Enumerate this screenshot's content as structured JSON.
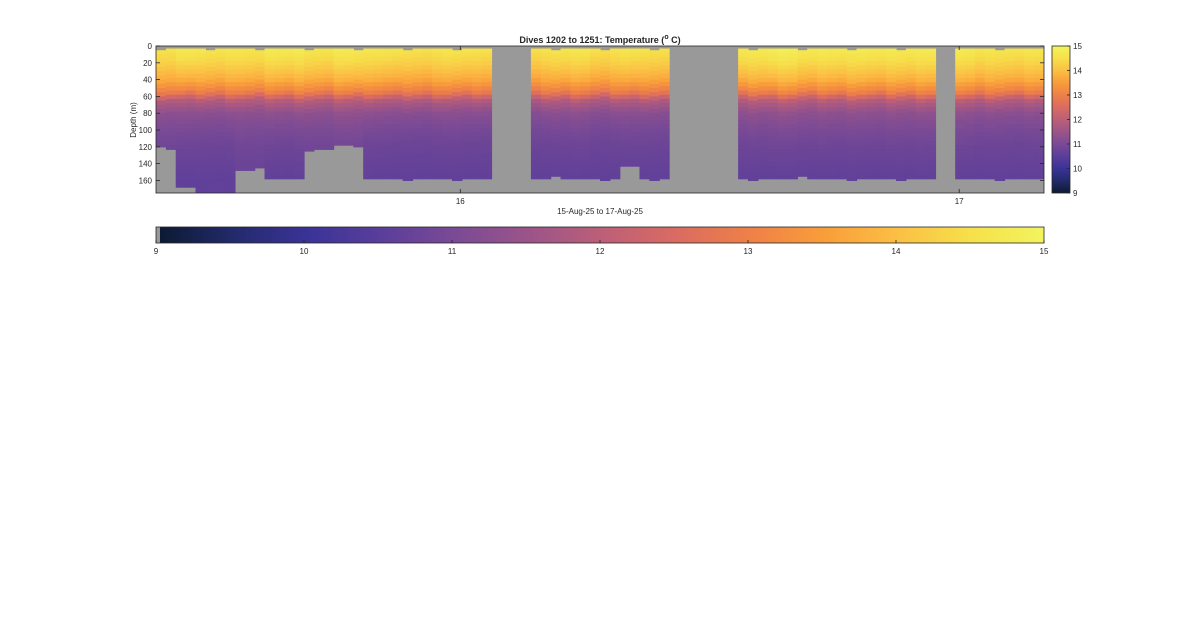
{
  "chart_data": [
    {
      "type": "heatmap",
      "title": "Dives 1202 to 1251: Temperature (",
      "title_superscript": "o",
      "title_suffix": " C)",
      "xlabel": "15-Aug-25 to 17-Aug-25",
      "ylabel": "Depth (m)",
      "x_unit": "day of month (Aug 2025)",
      "xlim": [
        15.39,
        17.17
      ],
      "ylim": [
        0,
        175
      ],
      "y_reversed": true,
      "x_ticks": [
        16,
        17
      ],
      "x_tick_labels": [
        "16",
        "17"
      ],
      "y_ticks": [
        0,
        20,
        40,
        60,
        80,
        100,
        120,
        140,
        160
      ],
      "y_tick_labels": [
        "0",
        "20",
        "40",
        "60",
        "80",
        "100",
        "120",
        "140",
        "160"
      ],
      "colormap": [
        "#0d1a33",
        "#232a6b",
        "#3a3397",
        "#5a3e9a",
        "#7a4a95",
        "#9b5489",
        "#bc5f78",
        "#d96b62",
        "#ee8048",
        "#f89d3a",
        "#fbbf44",
        "#f6e04b",
        "#f2f45e"
      ],
      "clim": [
        9,
        15
      ],
      "no_data_color": "#999999",
      "data_gaps_x": [
        [
          16.065,
          16.135
        ],
        [
          16.42,
          16.56
        ],
        [
          16.95,
          16.99
        ]
      ],
      "profiles": [
        {
          "x": 15.39,
          "max_depth": 120,
          "surface_temp": 14.6,
          "bottom_temp": 10.7
        },
        {
          "x": 15.45,
          "max_depth": 165,
          "surface_temp": 14.8,
          "bottom_temp": 10.6
        },
        {
          "x": 15.5,
          "max_depth": 175,
          "surface_temp": 14.7,
          "bottom_temp": 10.6
        },
        {
          "x": 15.58,
          "max_depth": 145,
          "surface_temp": 14.7,
          "bottom_temp": 10.7
        },
        {
          "x": 15.65,
          "max_depth": 158,
          "surface_temp": 14.8,
          "bottom_temp": 10.6
        },
        {
          "x": 15.73,
          "max_depth": 122,
          "surface_temp": 14.7,
          "bottom_temp": 10.7
        },
        {
          "x": 15.78,
          "max_depth": 118,
          "surface_temp": 14.8,
          "bottom_temp": 10.7
        },
        {
          "x": 15.85,
          "max_depth": 157,
          "surface_temp": 14.7,
          "bottom_temp": 10.6
        },
        {
          "x": 15.93,
          "max_depth": 156,
          "surface_temp": 14.6,
          "bottom_temp": 10.6
        },
        {
          "x": 16.0,
          "max_depth": 158,
          "surface_temp": 14.7,
          "bottom_temp": 10.6
        },
        {
          "x": 16.05,
          "max_depth": 155,
          "surface_temp": 14.6,
          "bottom_temp": 10.6
        },
        {
          "x": 16.15,
          "max_depth": 158,
          "surface_temp": 14.6,
          "bottom_temp": 10.6
        },
        {
          "x": 16.22,
          "max_depth": 155,
          "surface_temp": 14.7,
          "bottom_temp": 10.6
        },
        {
          "x": 16.3,
          "max_depth": 157,
          "surface_temp": 14.6,
          "bottom_temp": 10.6
        },
        {
          "x": 16.33,
          "max_depth": 140,
          "surface_temp": 14.7,
          "bottom_temp": 10.6
        },
        {
          "x": 16.38,
          "max_depth": 157,
          "surface_temp": 14.6,
          "bottom_temp": 10.6
        },
        {
          "x": 16.58,
          "max_depth": 156,
          "surface_temp": 14.8,
          "bottom_temp": 10.6
        },
        {
          "x": 16.65,
          "max_depth": 158,
          "surface_temp": 14.9,
          "bottom_temp": 10.6
        },
        {
          "x": 16.72,
          "max_depth": 155,
          "surface_temp": 14.8,
          "bottom_temp": 10.6
        },
        {
          "x": 16.8,
          "max_depth": 157,
          "surface_temp": 14.8,
          "bottom_temp": 10.6
        },
        {
          "x": 16.88,
          "max_depth": 158,
          "surface_temp": 14.8,
          "bottom_temp": 10.6
        },
        {
          "x": 17.0,
          "max_depth": 155,
          "surface_temp": 14.8,
          "bottom_temp": 10.6
        },
        {
          "x": 17.08,
          "max_depth": 156,
          "surface_temp": 14.7,
          "bottom_temp": 10.6
        },
        {
          "x": 17.15,
          "max_depth": 155,
          "surface_temp": 14.7,
          "bottom_temp": 10.6
        }
      ],
      "layer_temps_by_depth": [
        {
          "depth": 0,
          "temp": 14.8
        },
        {
          "depth": 20,
          "temp": 14.4
        },
        {
          "depth": 40,
          "temp": 13.8
        },
        {
          "depth": 55,
          "temp": 13.0
        },
        {
          "depth": 65,
          "temp": 11.9
        },
        {
          "depth": 80,
          "temp": 11.3
        },
        {
          "depth": 100,
          "temp": 11.0
        },
        {
          "depth": 120,
          "temp": 10.8
        },
        {
          "depth": 160,
          "temp": 10.6
        }
      ],
      "side_colorbar": {
        "ticks": [
          9,
          10,
          11,
          12,
          13,
          14,
          15
        ],
        "tick_labels": [
          "9",
          "10",
          "11",
          "12",
          "13",
          "14",
          "15"
        ]
      }
    },
    {
      "type": "heatmap",
      "role": "horizontal colorbar",
      "clim": [
        9,
        15
      ],
      "ticks": [
        9,
        10,
        11,
        12,
        13,
        14,
        15
      ],
      "tick_labels": [
        "9",
        "10",
        "11",
        "12",
        "13",
        "14",
        "15"
      ]
    }
  ]
}
